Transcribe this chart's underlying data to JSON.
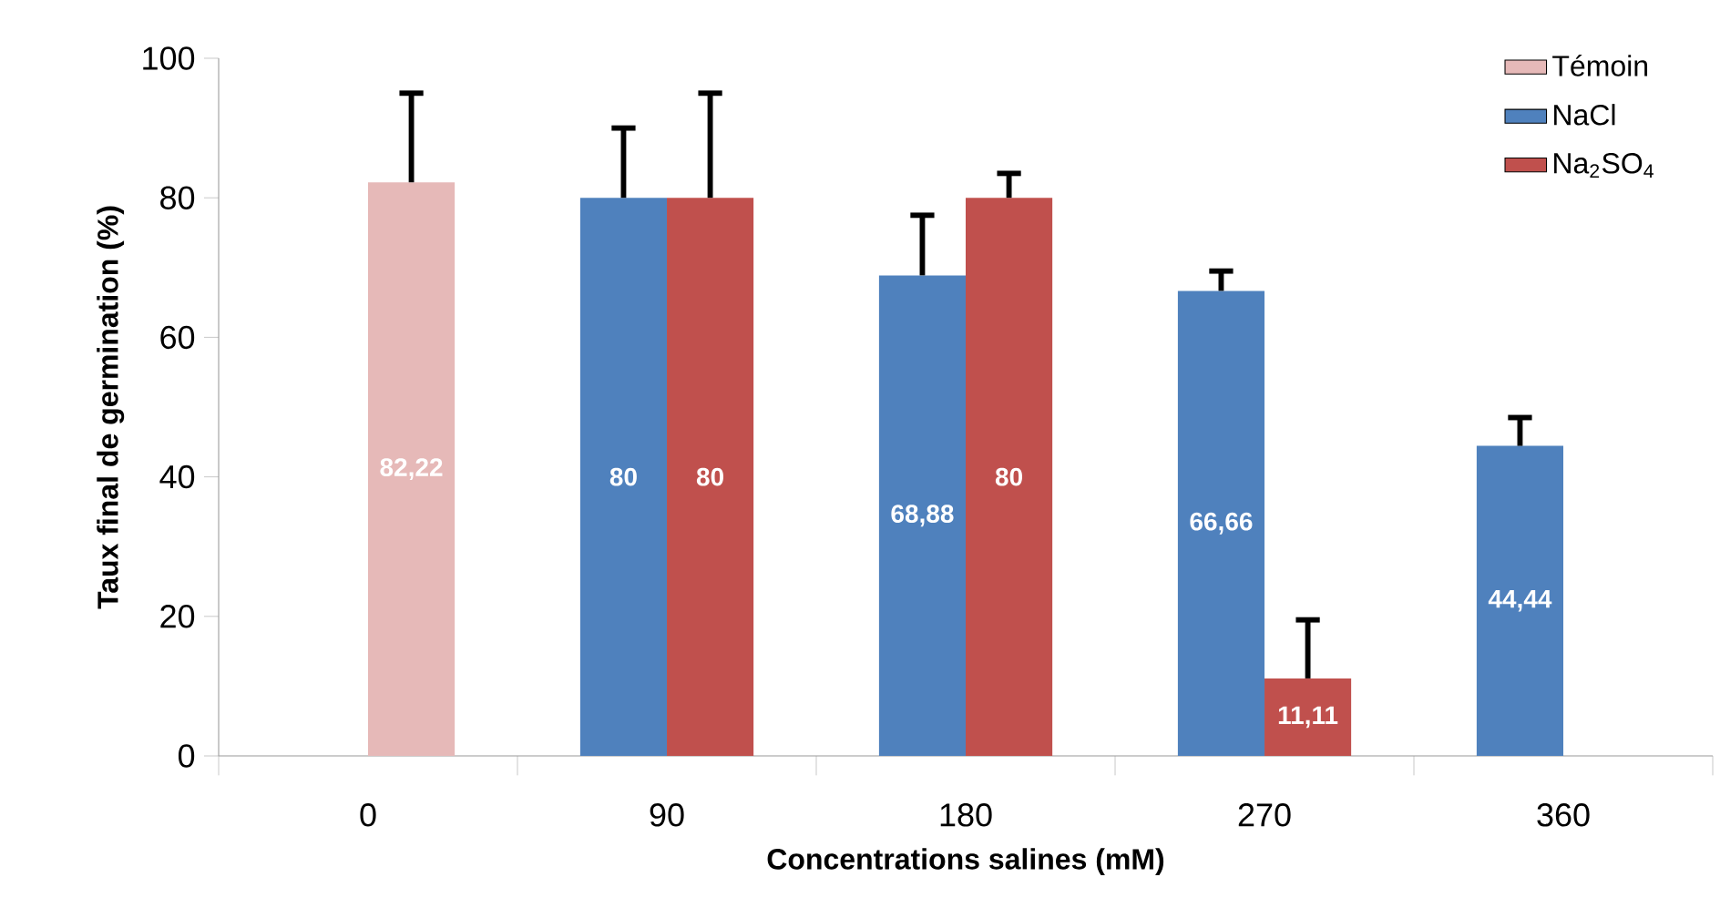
{
  "chart_data": {
    "type": "bar",
    "xlabel": "Concentrations salines (mM)",
    "ylabel": "Taux final de germination (%)",
    "categories": [
      "0",
      "90",
      "180",
      "270",
      "360"
    ],
    "series": [
      {
        "name": "Témoin",
        "color": "#e6b9b8",
        "values": [
          82.22,
          null,
          null,
          null,
          null
        ],
        "value_labels": [
          "82,22",
          null,
          null,
          null,
          null
        ],
        "errors": [
          [
            82.22,
            95
          ],
          null,
          null,
          null,
          null
        ]
      },
      {
        "name": "NaCl",
        "color": "#4f81bd",
        "values": [
          null,
          80,
          68.88,
          66.66,
          44.44
        ],
        "value_labels": [
          null,
          "80",
          "68,88",
          "66,66",
          "44,44"
        ],
        "errors": [
          null,
          [
            80,
            90
          ],
          [
            68.88,
            77.5
          ],
          [
            66.66,
            69.5
          ],
          [
            44.44,
            48.5
          ]
        ]
      },
      {
        "name": "Na$_{2}$SO$_{4}$",
        "color": "#c0504d",
        "values": [
          null,
          80,
          80,
          11.11,
          null
        ],
        "value_labels": [
          null,
          "80",
          "80",
          "11,11",
          null
        ],
        "errors": [
          null,
          [
            80,
            95
          ],
          [
            80,
            83.5
          ],
          [
            11.11,
            19.5
          ],
          null
        ]
      }
    ],
    "ylim": [
      0,
      100
    ],
    "yticks": [
      0,
      20,
      40,
      60,
      80,
      100
    ],
    "legend": "top right"
  }
}
